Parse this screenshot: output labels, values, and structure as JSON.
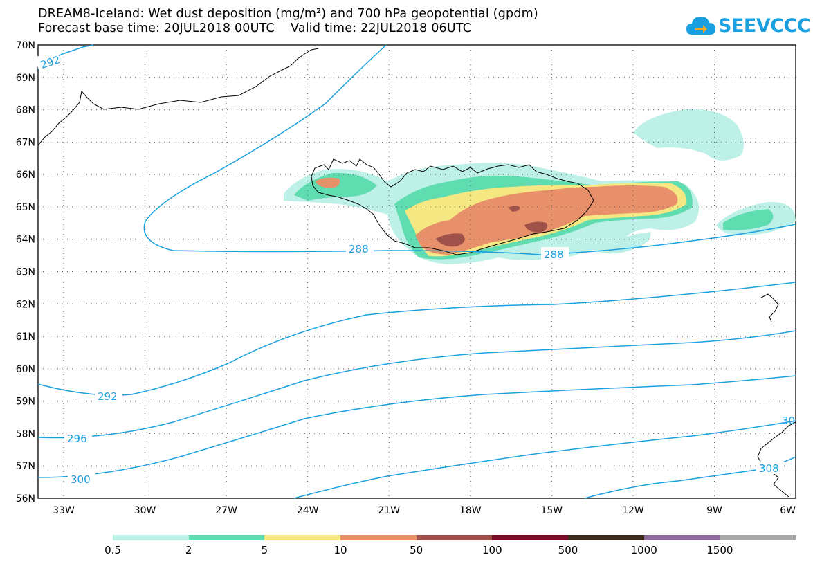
{
  "header": {
    "title_line1": "DREAM8-Iceland: Wet dust deposition (mg/m²) and 700 hPa geopotential (gpdm)",
    "title_line2": "Forecast base time: 20JUL2018 00UTC    Valid time: 22JUL2018 06UTC"
  },
  "logo": {
    "text": "SEEVCCC",
    "icon": "cloud-icon"
  },
  "axes": {
    "lat_labels": [
      "70N",
      "69N",
      "68N",
      "67N",
      "66N",
      "65N",
      "64N",
      "63N",
      "62N",
      "61N",
      "60N",
      "59N",
      "58N",
      "57N",
      "56N"
    ],
    "lon_labels": [
      "33W",
      "30W",
      "27W",
      "24W",
      "21W",
      "18W",
      "15W",
      "12W",
      "9W",
      "6W"
    ]
  },
  "contour_labels": {
    "c292_top": "292",
    "c288_a": "288",
    "c288_b": "288",
    "c292": "292",
    "c296": "296",
    "c300": "300",
    "c308": "308",
    "c30x": "30"
  },
  "legend": {
    "labels": [
      "0.5",
      "2",
      "5",
      "10",
      "50",
      "100",
      "500",
      "1000",
      "1500"
    ],
    "colors": [
      "#bdf0e6",
      "#5fdcb0",
      "#f5e882",
      "#e8906a",
      "#a0524a",
      "#7a0a2a",
      "#3a2a1a",
      "#8c6a9a",
      "#a8a8a8"
    ]
  },
  "colors": {
    "contour": "#1aa0e0",
    "grid": "#555555"
  }
}
